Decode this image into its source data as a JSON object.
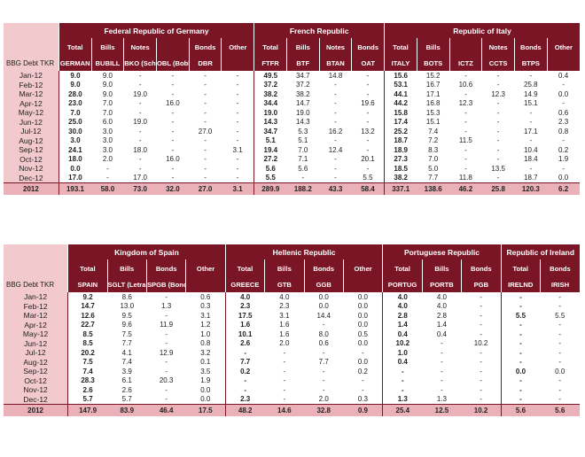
{
  "table1": {
    "row_header_label": "BBG Debt TKR",
    "groups": [
      {
        "name": "Federal Republic of Germany",
        "cols": [
          [
            "Total",
            "GERMAN"
          ],
          [
            "Bills",
            "BUBILL"
          ],
          [
            "Notes",
            "BKO (Schatze)"
          ],
          [
            "",
            "OBL (Bobls)"
          ],
          [
            "Bonds",
            "DBR"
          ],
          [
            "Other",
            ""
          ]
        ]
      },
      {
        "name": "French Republic",
        "cols": [
          [
            "Total",
            "FTFR"
          ],
          [
            "Bills",
            "BTF"
          ],
          [
            "Notes",
            "BTAN"
          ],
          [
            "Bonds",
            "OAT"
          ]
        ]
      },
      {
        "name": "Republic of Italy",
        "cols": [
          [
            "Total",
            "ITALY"
          ],
          [
            "Bills",
            "BOTS"
          ],
          [
            "",
            "ICTZ"
          ],
          [
            "Notes",
            "CCTS"
          ],
          [
            "Bonds",
            "BTPS"
          ],
          [
            "Other",
            ""
          ]
        ]
      }
    ],
    "rows": [
      [
        "Jan-12",
        "9.0",
        "9.0",
        "-",
        "-",
        "-",
        "-",
        "49.5",
        "34.7",
        "14.8",
        "-",
        "15.6",
        "15.2",
        "-",
        "-",
        "-",
        "0.4"
      ],
      [
        "Feb-12",
        "9.0",
        "9.0",
        "-",
        "-",
        "-",
        "-",
        "37.2",
        "37.2",
        "-",
        "-",
        "53.1",
        "16.7",
        "10.6",
        "-",
        "25.8",
        "-"
      ],
      [
        "Mar-12",
        "28.0",
        "9.0",
        "19.0",
        "-",
        "-",
        "-",
        "38.2",
        "38.2",
        "-",
        "-",
        "44.1",
        "17.1",
        "-",
        "12.3",
        "14.9",
        "0.0"
      ],
      [
        "Apr-12",
        "23.0",
        "7.0",
        "-",
        "16.0",
        "-",
        "-",
        "34.4",
        "14.7",
        "-",
        "19.6",
        "44.2",
        "16.8",
        "12.3",
        "-",
        "15.1",
        "-"
      ],
      [
        "May-12",
        "7.0",
        "7.0",
        "-",
        "-",
        "-",
        "-",
        "19.0",
        "19.0",
        "-",
        "-",
        "15.8",
        "15.3",
        "-",
        "-",
        "-",
        "0.6"
      ],
      [
        "Jun-12",
        "25.0",
        "6.0",
        "19.0",
        "-",
        "-",
        "-",
        "14.3",
        "14.3",
        "-",
        "-",
        "17.4",
        "15.1",
        "-",
        "-",
        "-",
        "2.3"
      ],
      [
        "Jul-12",
        "30.0",
        "3.0",
        "-",
        "-",
        "27.0",
        "-",
        "34.7",
        "5.3",
        "16.2",
        "13.2",
        "25.2",
        "7.4",
        "-",
        "-",
        "17.1",
        "0.8"
      ],
      [
        "Aug-12",
        "3.0",
        "3.0",
        "-",
        "-",
        "-",
        "-",
        "5.1",
        "5.1",
        "-",
        "-",
        "18.7",
        "7.2",
        "11.5",
        "-",
        "-",
        "-"
      ],
      [
        "Sep-12",
        "24.1",
        "3.0",
        "18.0",
        "-",
        "-",
        "3.1",
        "19.4",
        "7.0",
        "12.4",
        "-",
        "18.9",
        "8.3",
        "-",
        "-",
        "10.4",
        "0.2"
      ],
      [
        "Oct-12",
        "18.0",
        "2.0",
        "-",
        "16.0",
        "-",
        "-",
        "27.2",
        "7.1",
        "-",
        "20.1",
        "27.3",
        "7.0",
        "-",
        "-",
        "18.4",
        "1.9"
      ],
      [
        "Nov-12",
        "0.0",
        "-",
        "-",
        "-",
        "-",
        "-",
        "5.6",
        "5.6",
        "-",
        "-",
        "18.5",
        "5.0",
        "-",
        "13.5",
        "-",
        "-"
      ],
      [
        "Dec-12",
        "17.0",
        "-",
        "17.0",
        "-",
        "-",
        "-",
        "5.5",
        "-",
        "-",
        "5.5",
        "38.2",
        "7.7",
        "11.8",
        "-",
        "18.7",
        "0.0"
      ]
    ],
    "footer": [
      "2012",
      "193.1",
      "58.0",
      "73.0",
      "32.0",
      "27.0",
      "3.1",
      "289.9",
      "188.2",
      "43.3",
      "58.4",
      "337.1",
      "138.6",
      "46.2",
      "25.8",
      "120.3",
      "6.2"
    ]
  },
  "table2": {
    "row_header_label": "BBG Debt TKR",
    "groups": [
      {
        "name": "Kingdom of Spain",
        "cols": [
          [
            "Total",
            "SPAIN"
          ],
          [
            "Bills",
            "SGLT (Letras)"
          ],
          [
            "Bonds",
            "SPGB (Bonos)"
          ],
          [
            "Other",
            ""
          ]
        ]
      },
      {
        "name": "Hellenic Republic",
        "cols": [
          [
            "Total",
            "GREECE"
          ],
          [
            "Bills",
            "GTB"
          ],
          [
            "Bonds",
            "GGB"
          ],
          [
            "Other",
            ""
          ]
        ]
      },
      {
        "name": "Portuguese Republic",
        "cols": [
          [
            "Total",
            "PORTUG"
          ],
          [
            "Bills",
            "PORTB"
          ],
          [
            "Bonds",
            "PGB"
          ]
        ]
      },
      {
        "name": "Republic of Ireland",
        "cols": [
          [
            "Total",
            "IRELND"
          ],
          [
            "Bonds",
            "IRISH"
          ]
        ]
      }
    ],
    "rows": [
      [
        "Jan-12",
        "9.2",
        "8.6",
        "-",
        "0.6",
        "4.0",
        "4.0",
        "0.0",
        "0.0",
        "4.0",
        "4.0",
        "-",
        "-",
        "-"
      ],
      [
        "Feb-12",
        "14.7",
        "13.0",
        "1.3",
        "0.3",
        "2.3",
        "2.3",
        "0.0",
        "0.0",
        "4.0",
        "4.0",
        "-",
        "-",
        "-"
      ],
      [
        "Mar-12",
        "12.6",
        "9.5",
        "-",
        "3.1",
        "17.5",
        "3.1",
        "14.4",
        "0.0",
        "2.8",
        "2.8",
        "-",
        "5.5",
        "5.5"
      ],
      [
        "Apr-12",
        "22.7",
        "9.6",
        "11.9",
        "1.2",
        "1.6",
        "1.6",
        "-",
        "0.0",
        "1.4",
        "1.4",
        "-",
        "-",
        "-"
      ],
      [
        "May-12",
        "8.5",
        "7.5",
        "-",
        "1.0",
        "10.1",
        "1.6",
        "8.0",
        "0.5",
        "0.4",
        "0.4",
        "-",
        "-",
        "-"
      ],
      [
        "Jun-12",
        "8.5",
        "7.7",
        "-",
        "0.8",
        "2.6",
        "2.0",
        "0.6",
        "0.0",
        "10.2",
        "-",
        "10.2",
        "-",
        "-"
      ],
      [
        "Jul-12",
        "20.2",
        "4.1",
        "12.9",
        "3.2",
        "-",
        "-",
        "-",
        "-",
        "1.0",
        "-",
        "-",
        "-",
        "-"
      ],
      [
        "Aug-12",
        "7.5",
        "7.4",
        "-",
        "0.1",
        "7.7",
        "-",
        "7.7",
        "0.0",
        "0.4",
        "-",
        "-",
        "-",
        "-"
      ],
      [
        "Sep-12",
        "7.4",
        "3.9",
        "-",
        "3.5",
        "0.2",
        "-",
        "-",
        "0.2",
        "-",
        "-",
        "-",
        "0.0",
        "0.0"
      ],
      [
        "Oct-12",
        "28.3",
        "6.1",
        "20.3",
        "1.9",
        "-",
        "-",
        "-",
        "-",
        "-",
        "-",
        "-",
        "-",
        "-"
      ],
      [
        "Nov-12",
        "2.6",
        "2.6",
        "-",
        "0.0",
        "-",
        "-",
        "-",
        "-",
        "-",
        "-",
        "-",
        "-",
        "-"
      ],
      [
        "Dec-12",
        "5.7",
        "5.7",
        "-",
        "0.0",
        "2.3",
        "-",
        "2.0",
        "0.3",
        "1.3",
        "1.3",
        "-",
        "-",
        "-"
      ]
    ],
    "footer": [
      "2012",
      "147.9",
      "83.9",
      "46.4",
      "17.5",
      "48.2",
      "14.6",
      "32.8",
      "0.9",
      "25.4",
      "12.5",
      "10.2",
      "5.6",
      "5.6"
    ]
  }
}
